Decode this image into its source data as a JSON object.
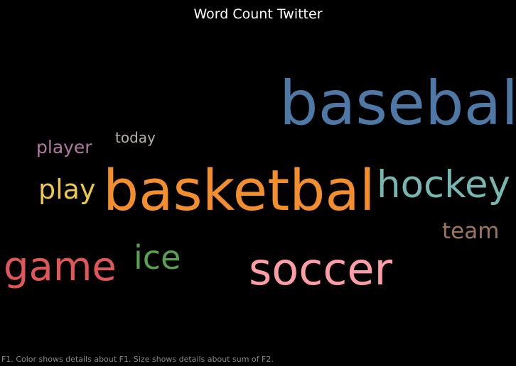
{
  "title": "Word Count Twitter",
  "footer": "F1.  Color shows details about F1.  Size shows details about sum of F2.",
  "chart_data": {
    "type": "word_cloud",
    "title": "Word Count Twitter",
    "words": [
      {
        "text": "basebal",
        "color": "#4e79a7",
        "weight": 100
      },
      {
        "text": "basketbal",
        "color": "#f28e2b",
        "weight": 92
      },
      {
        "text": "soccer",
        "color": "#ff9da7",
        "weight": 68
      },
      {
        "text": "hockey",
        "color": "#76b7b2",
        "weight": 60
      },
      {
        "text": "game",
        "color": "#e15759",
        "weight": 56
      },
      {
        "text": "ice",
        "color": "#59a14f",
        "weight": 47
      },
      {
        "text": "play",
        "color": "#edc948",
        "weight": 38
      },
      {
        "text": "team",
        "color": "#9c755f",
        "weight": 34
      },
      {
        "text": "player",
        "color": "#b07aa1",
        "weight": 27
      },
      {
        "text": "today",
        "color": "#bab0ac",
        "weight": 21
      }
    ]
  }
}
